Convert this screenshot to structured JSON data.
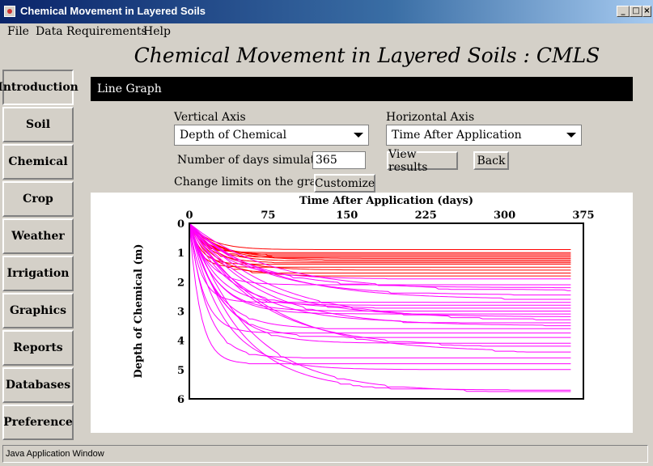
{
  "window": {
    "title": "Chemical Movement in Layered Soils",
    "min": "_",
    "max": "□",
    "close": "×"
  },
  "menu": [
    "File",
    "Data Requirements",
    "Help"
  ],
  "main_title": "Chemical Movement in Layered Soils : CMLS",
  "nav": [
    "Introduction",
    "Soil",
    "Chemical",
    "Crop",
    "Weather",
    "Irrigation",
    "Graphics",
    "Reports",
    "Databases",
    "Preference"
  ],
  "panel": {
    "header": "Line Graph",
    "vertical_axis_label": "Vertical Axis",
    "vertical_axis_value": "Depth of Chemical",
    "horizontal_axis_label": "Horizontal Axis",
    "horizontal_axis_value": "Time After Application",
    "days_label": "Number of days simulated:",
    "days_value": "365",
    "view_results": "View results",
    "back": "Back",
    "limits_label": "Change limits on the graph:",
    "customize": "Customize"
  },
  "colors": {
    "red_series": "#ff0000",
    "magenta_series": "#ff00ff"
  },
  "chart_data": {
    "type": "line",
    "xlabel": "Time After Application (days)",
    "ylabel": "Depth of Chemical (m)",
    "xlim": [
      0,
      375
    ],
    "ylim": [
      0,
      6
    ],
    "y_inverted": true,
    "x_axis_position": "top",
    "xticks": [
      0,
      75,
      150,
      225,
      300,
      375
    ],
    "yticks": [
      0,
      1,
      2,
      3,
      4,
      5,
      6
    ],
    "series": [
      {
        "color": "red",
        "final_depths": [
          0.9,
          1.0,
          1.05,
          1.1,
          1.15,
          1.2,
          1.25,
          1.3,
          1.35,
          1.4,
          1.5,
          1.6,
          1.7,
          1.8
        ]
      },
      {
        "color": "magenta",
        "final_depths": [
          1.9,
          2.1,
          2.2,
          2.3,
          2.45,
          2.6,
          2.7,
          2.8,
          2.9,
          3.0,
          3.1,
          3.2,
          3.3,
          3.4,
          3.5,
          3.6,
          3.75,
          3.9,
          4.1,
          4.2,
          4.4,
          4.6,
          4.8,
          5.0,
          5.7,
          5.75
        ]
      }
    ]
  },
  "status": "Java Application Window"
}
